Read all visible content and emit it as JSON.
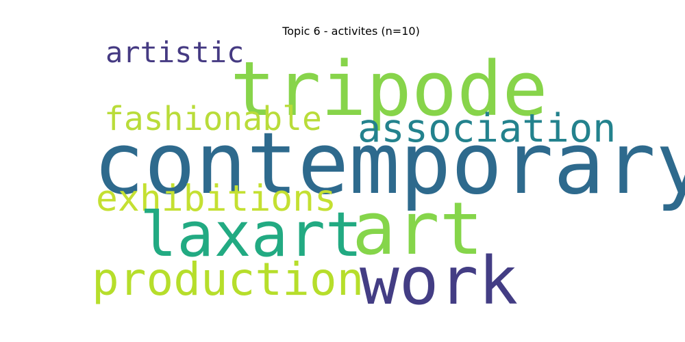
{
  "title": "Topic 6 - activites (n=10)",
  "words": [
    {
      "text": "artistic",
      "color": "#453a82"
    },
    {
      "text": "tripode",
      "color": "#87d44a"
    },
    {
      "text": "fashionable",
      "color": "#b9dc3a"
    },
    {
      "text": "association",
      "color": "#23828d"
    },
    {
      "text": "contemporary",
      "color": "#2e6a8d"
    },
    {
      "text": "exhibitions",
      "color": "#c4e032"
    },
    {
      "text": "laxart",
      "color": "#22aa82"
    },
    {
      "text": "art",
      "color": "#85d54a"
    },
    {
      "text": "production",
      "color": "#b6de2b"
    },
    {
      "text": "work",
      "color": "#433d84"
    }
  ]
}
